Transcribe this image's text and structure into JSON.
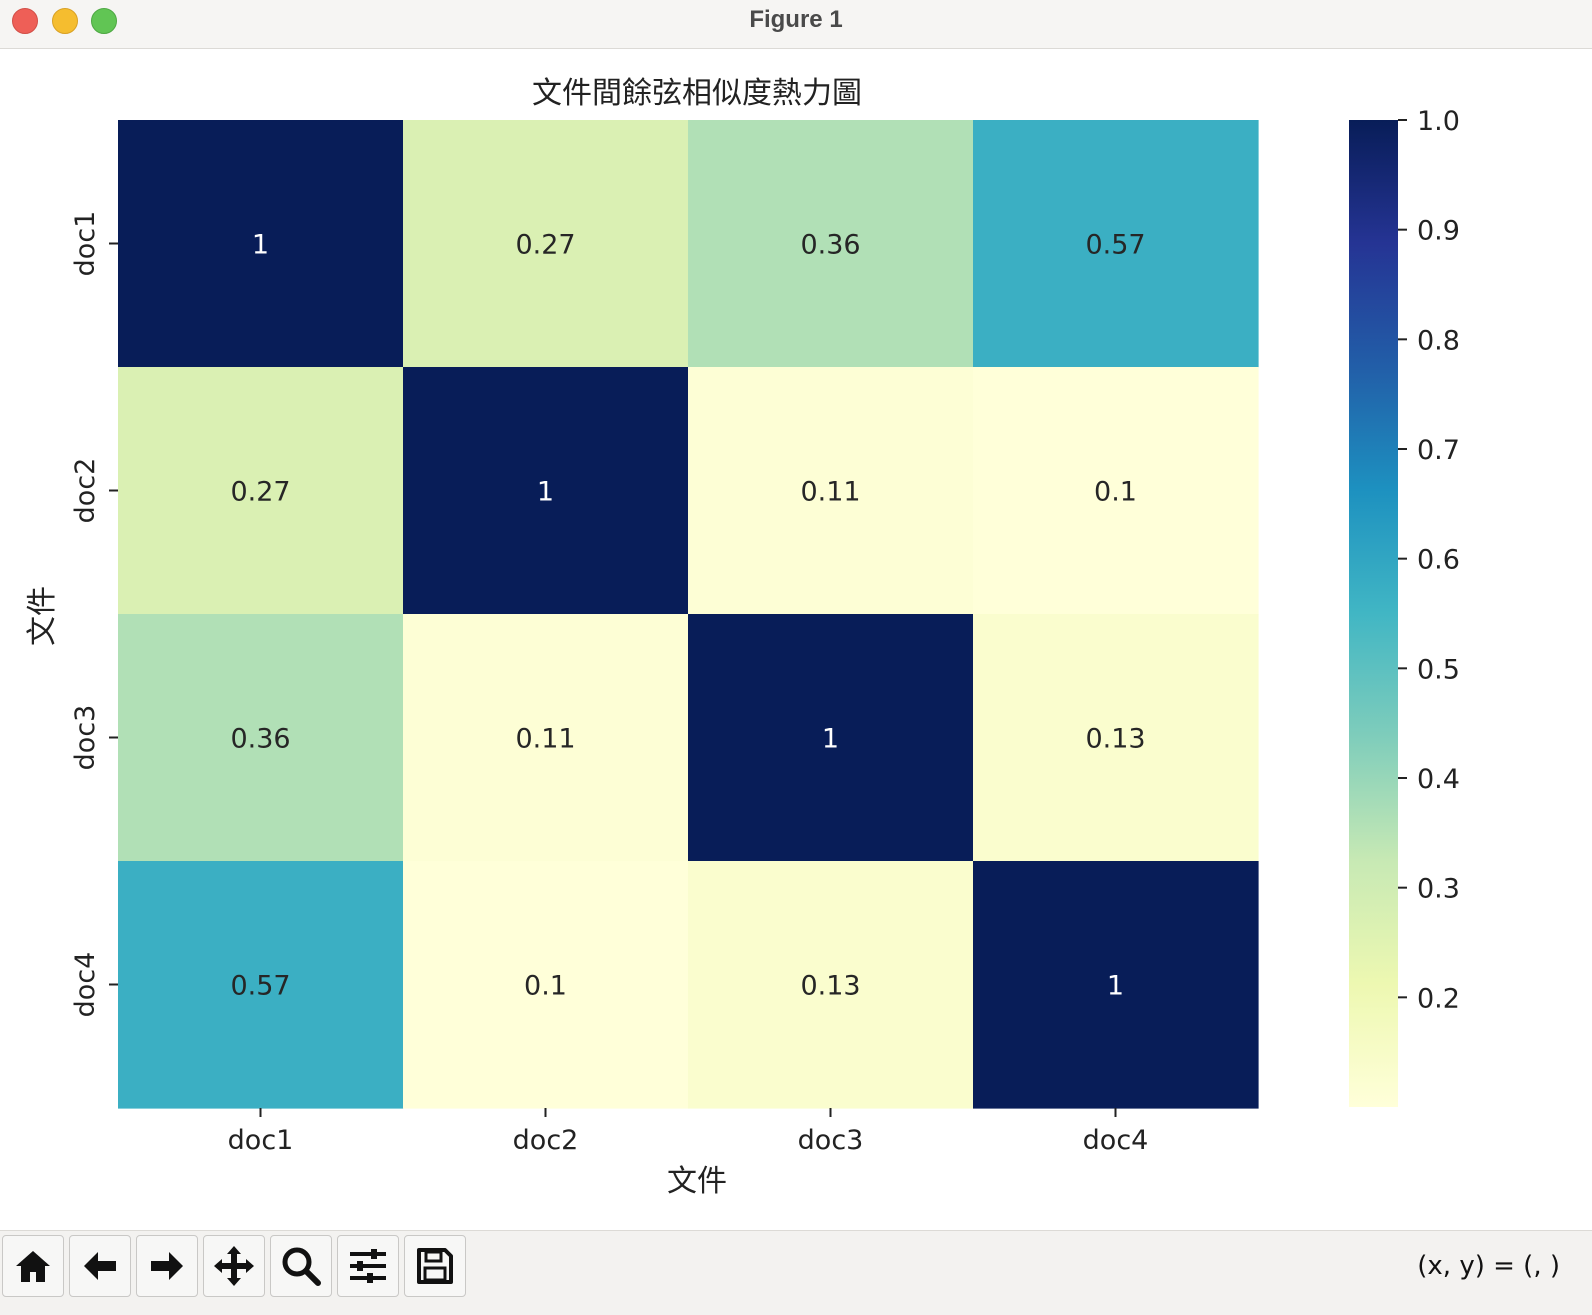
{
  "window": {
    "title": "Figure 1"
  },
  "chart_data": {
    "type": "heatmap",
    "title": "文件間餘弦相似度熱力圖",
    "xlabel": "文件",
    "ylabel": "文件",
    "x_categories": [
      "doc1",
      "doc2",
      "doc3",
      "doc4"
    ],
    "y_categories": [
      "doc1",
      "doc2",
      "doc3",
      "doc4"
    ],
    "values": [
      [
        1,
        0.27,
        0.36,
        0.57
      ],
      [
        0.27,
        1,
        0.11,
        0.1
      ],
      [
        0.36,
        0.11,
        1,
        0.13
      ],
      [
        0.57,
        0.1,
        0.13,
        1
      ]
    ],
    "annotations": [
      [
        "1",
        "0.27",
        "0.36",
        "0.57"
      ],
      [
        "0.27",
        "1",
        "0.11",
        "0.1"
      ],
      [
        "0.36",
        "0.11",
        "1",
        "0.13"
      ],
      [
        "0.57",
        "0.1",
        "0.13",
        "1"
      ]
    ],
    "colormap": "YlGnBu",
    "colorbar": {
      "range": [
        0.1,
        1.0
      ],
      "ticks": [
        0.2,
        0.3,
        0.4,
        0.5,
        0.6,
        0.7,
        0.8,
        0.9,
        1.0
      ],
      "tick_labels": [
        "0.2",
        "0.3",
        "0.4",
        "0.5",
        "0.6",
        "0.7",
        "0.8",
        "0.9",
        "1.0"
      ]
    }
  },
  "toolbar": {
    "buttons": [
      {
        "name": "home-button",
        "icon": "home-icon"
      },
      {
        "name": "back-button",
        "icon": "arrow-left-icon"
      },
      {
        "name": "forward-button",
        "icon": "arrow-right-icon"
      },
      {
        "name": "pan-button",
        "icon": "move-icon"
      },
      {
        "name": "zoom-button",
        "icon": "magnifier-icon"
      },
      {
        "name": "configure-subplots-button",
        "icon": "sliders-icon"
      },
      {
        "name": "save-button",
        "icon": "floppy-disk-icon"
      }
    ],
    "coords_text": "(x, y) = (, )"
  }
}
